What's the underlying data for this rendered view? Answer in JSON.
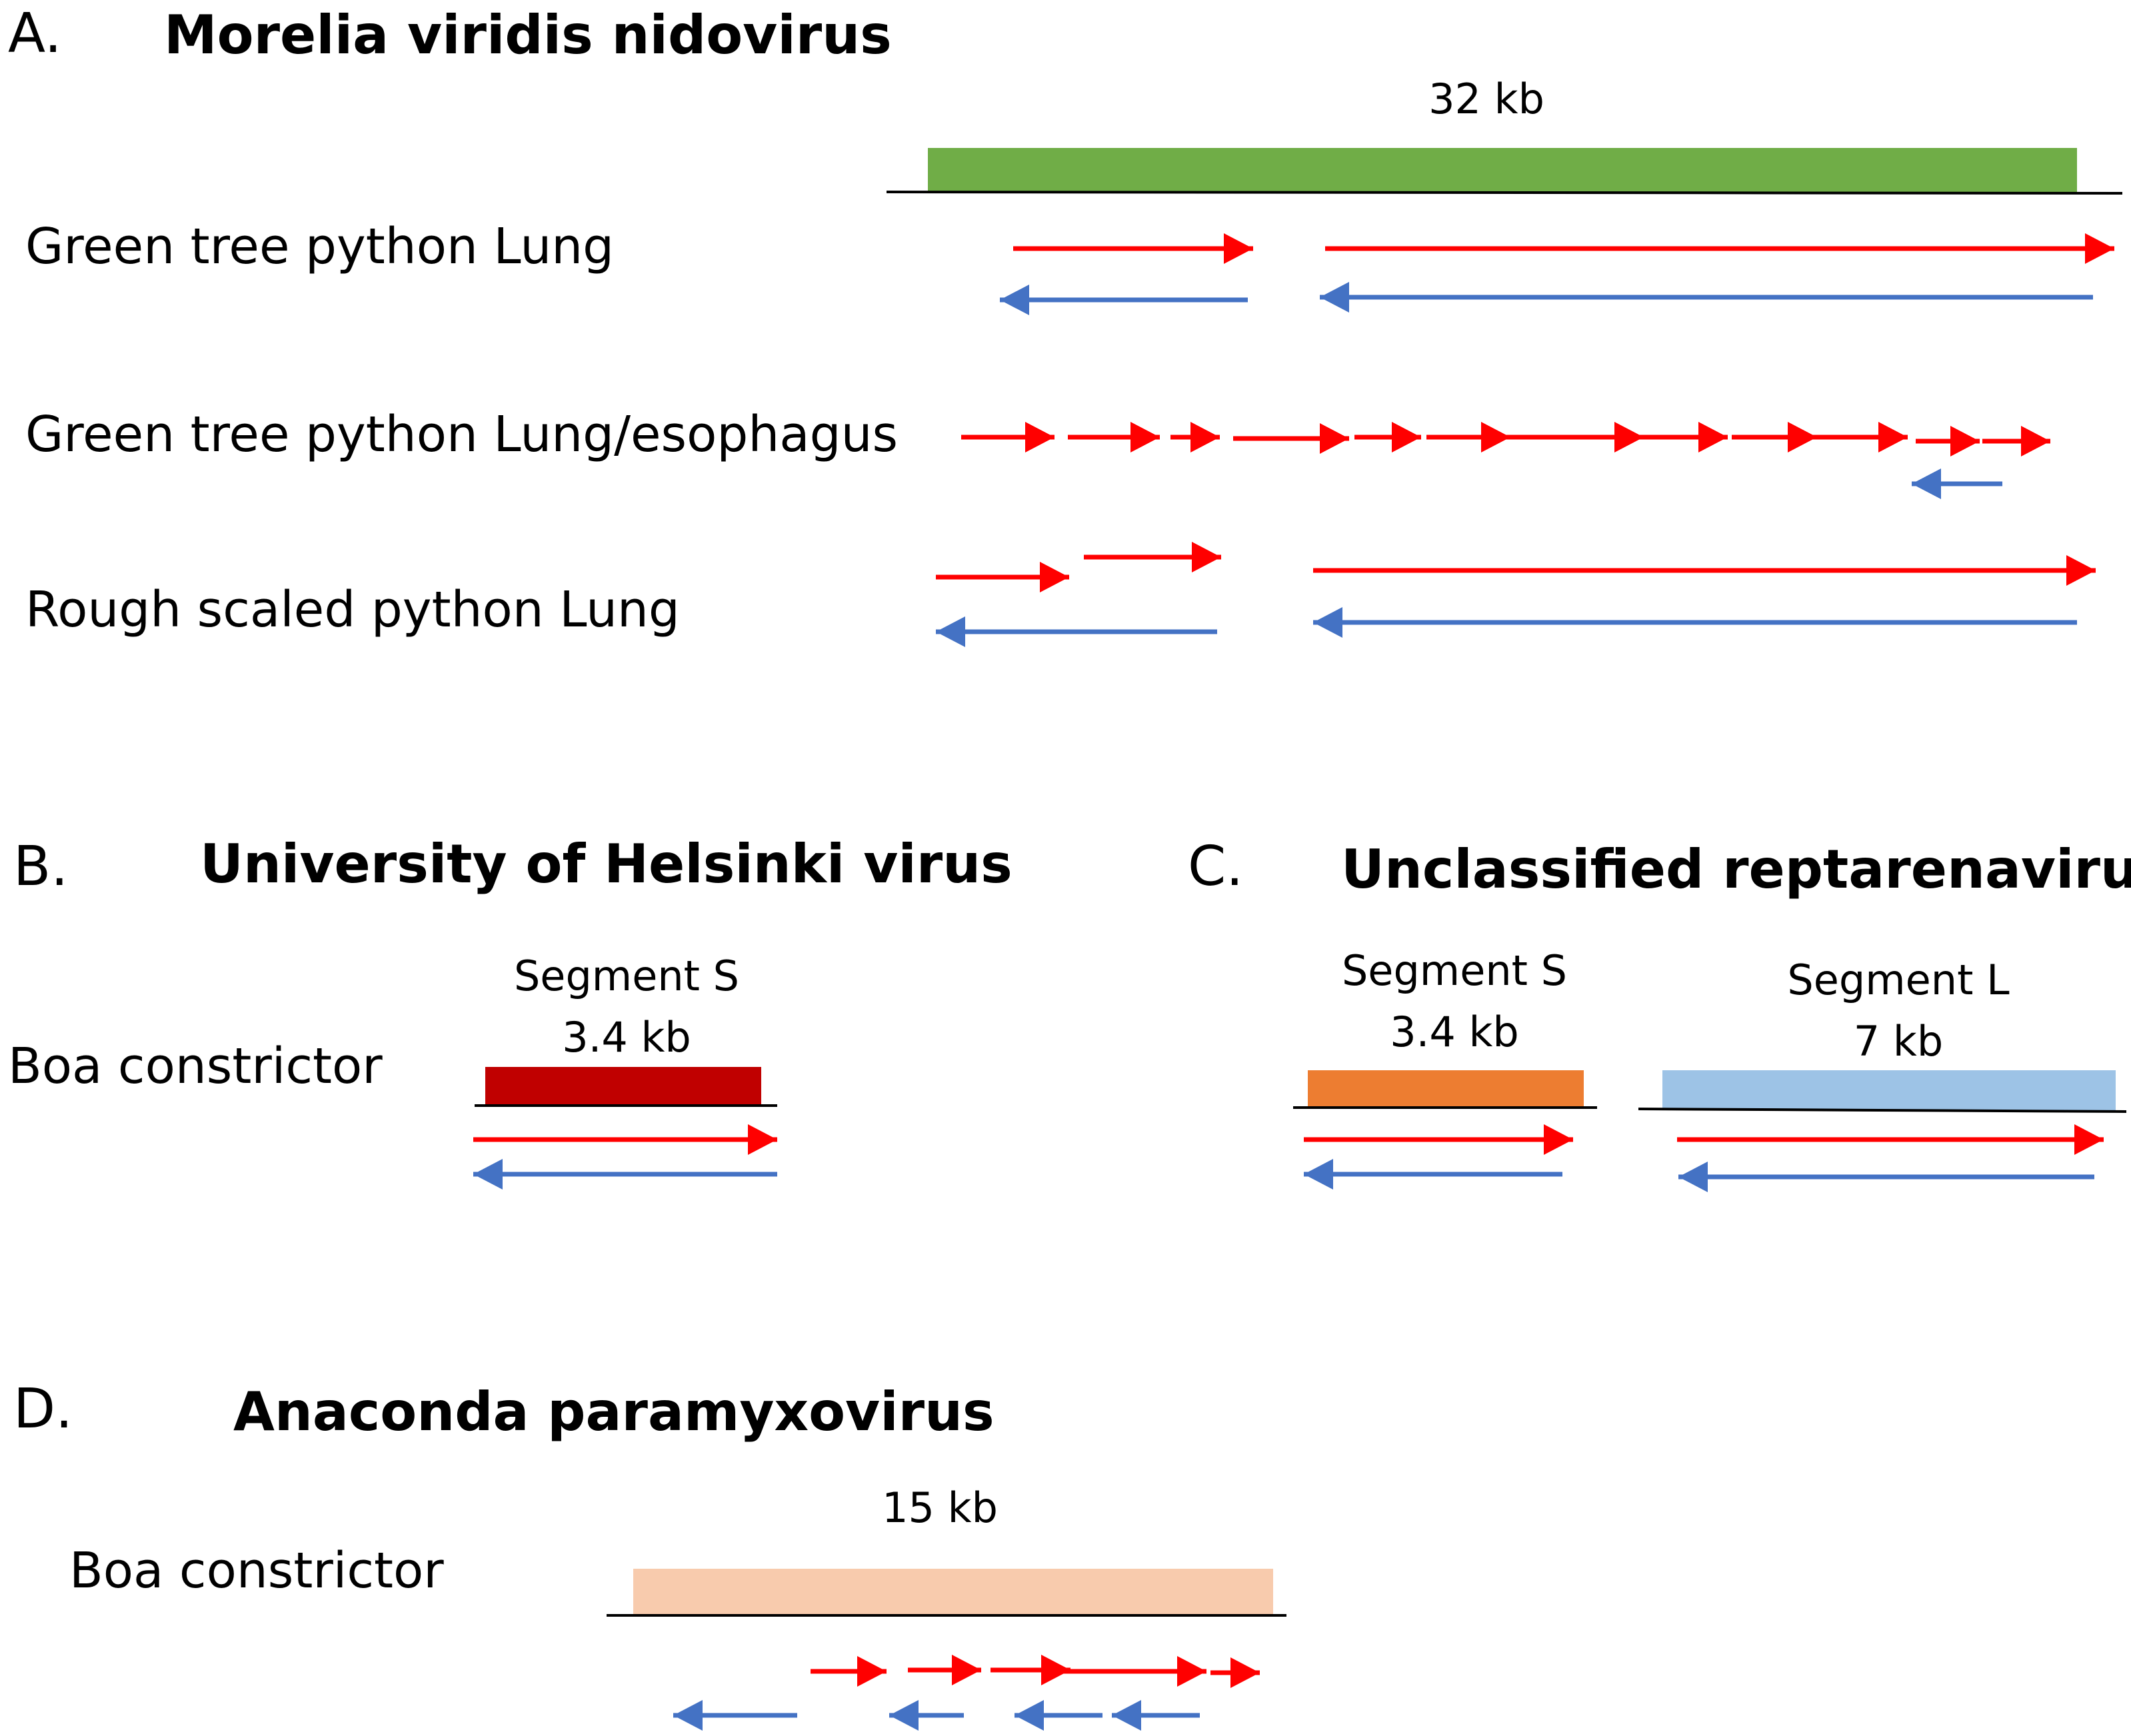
{
  "colors": {
    "forward_read": "#ff0000",
    "reverse_read": "#4472c4",
    "axis_line": "#000000",
    "morelia_genome": "#70ad47",
    "helsinki_segment_s": "#c00000",
    "reptarena_segment_s": "#ed7d31",
    "reptarena_segment_l": "#9dc3e6",
    "anaconda_genome": "#f8cbad"
  },
  "panels": {
    "a": {
      "letter": "A.",
      "title": "Morelia viridis nidovirus",
      "genome_label": "32 kb",
      "rows": [
        {
          "label": "Green tree python Lung"
        },
        {
          "label": "Green tree python Lung/esophagus"
        },
        {
          "label": "Rough scaled python Lung"
        }
      ]
    },
    "b": {
      "letter": "B.",
      "title": "University of Helsinki virus",
      "host": "Boa constrictor",
      "segment_name": "Segment S",
      "segment_size": "3.4 kb"
    },
    "c": {
      "letter": "C.",
      "title": "Unclassified reptarenavirus",
      "segments": [
        {
          "name": "Segment S",
          "size": "3.4 kb"
        },
        {
          "name": "Segment L",
          "size": "7 kb"
        }
      ]
    },
    "d": {
      "letter": "D.",
      "title": "Anaconda paramyxovirus",
      "host": "Boa constrictor",
      "genome_label": "15 kb"
    }
  }
}
